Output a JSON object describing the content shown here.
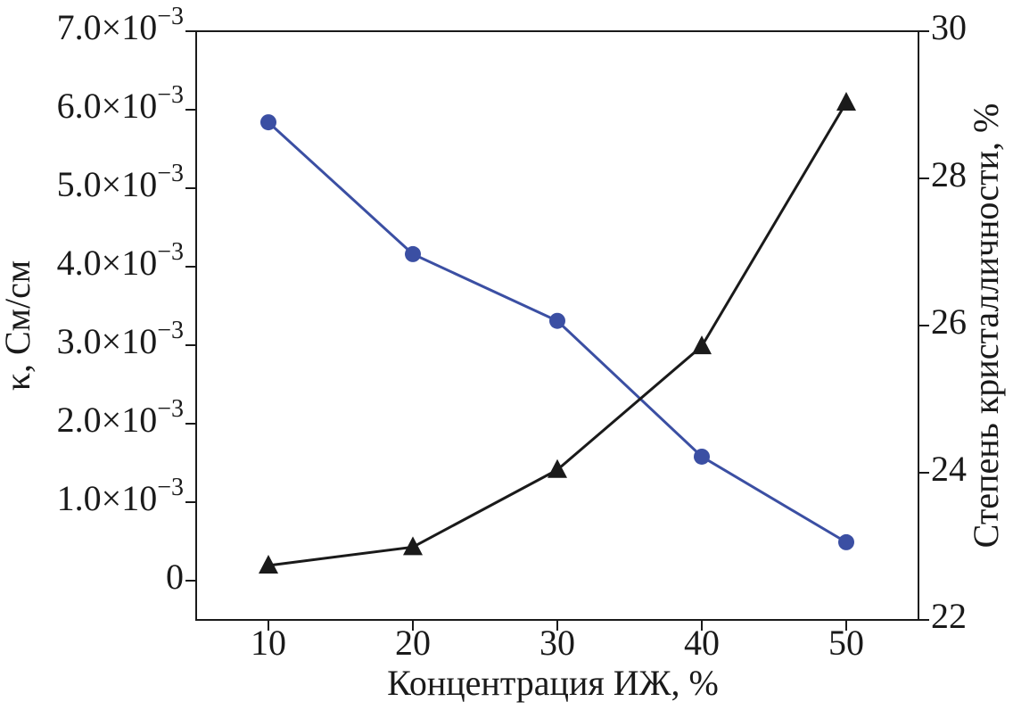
{
  "chart_data": {
    "type": "line",
    "x_label": "Концентрация ИЖ, %",
    "y_label": "κ, См/см",
    "y2_label": "Степень кристалличности, %",
    "x": [
      10,
      20,
      30,
      40,
      50
    ],
    "xlim": [
      5,
      55
    ],
    "xticks": [
      10,
      20,
      30,
      40,
      50
    ],
    "ylim": [
      -0.0005,
      0.007
    ],
    "yticks": [
      0,
      {
        "value": 0.001,
        "label": "1.0×10−3"
      },
      {
        "value": 0.002,
        "label": "2.0×10−3"
      },
      {
        "value": 0.003,
        "label": "3.0×10−3"
      },
      {
        "value": 0.004,
        "label": "4.0×10−3"
      },
      {
        "value": 0.005,
        "label": "5.0×10−3"
      },
      {
        "value": 0.006,
        "label": "6.0×10−3"
      },
      {
        "value": 0.007,
        "label": "7.0×10−3"
      }
    ],
    "y2lim": [
      22,
      30
    ],
    "y2ticks": [
      22,
      24,
      26,
      28,
      30
    ],
    "series": [
      {
        "color": "#3b4fa3",
        "marker": "circle",
        "values": [
          0.00584,
          0.00416,
          0.00331,
          0.00158,
          0.00049
        ]
      },
      {
        "color": "#1a1a1a",
        "marker": "triangle",
        "axis": "y2",
        "values": [
          22.74,
          22.99,
          24.04,
          25.72,
          29.03
        ]
      }
    ]
  }
}
